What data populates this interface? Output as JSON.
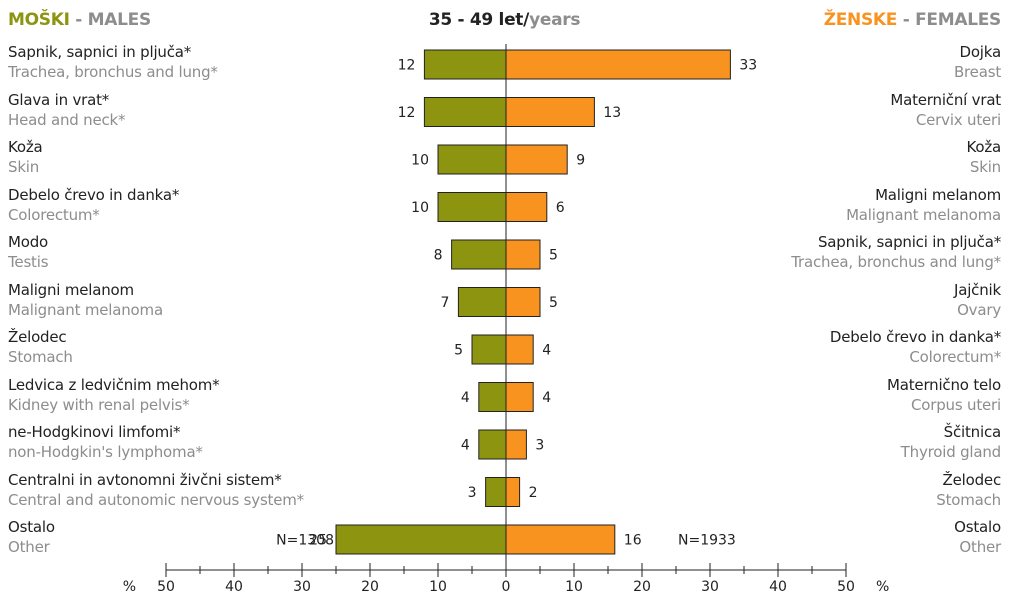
{
  "header": {
    "left_sl": "MOŠKI",
    "left_sep": " - ",
    "left_en": "MALES",
    "center_age": "35 - 49 let",
    "center_slash": "/",
    "center_en": "years",
    "right_sl": "ŽENSKE",
    "right_sep": " - ",
    "right_en": "FEMALES"
  },
  "colors": {
    "male": "#8c9410",
    "female": "#f7931e",
    "text_gray": "#8d8d8d",
    "text_dark": "#222222"
  },
  "chart_data": {
    "type": "bar",
    "orientation": "horizontal",
    "layout": "back-to-back",
    "xlim": [
      -50,
      50
    ],
    "ticks": [
      50,
      40,
      30,
      20,
      10,
      0,
      10,
      20,
      30,
      40,
      50
    ],
    "unit": "%",
    "males": {
      "n_label": "N=1308",
      "rows": [
        {
          "sl": "Sapnik, sapnici in pljuča*",
          "en": "Trachea, bronchus and lung*",
          "value": 12
        },
        {
          "sl": "Glava in vrat*",
          "en": "Head and neck*",
          "value": 12
        },
        {
          "sl": "Koža",
          "en": "Skin",
          "value": 10
        },
        {
          "sl": "Debelo črevo in danka*",
          "en": "Colorectum*",
          "value": 10
        },
        {
          "sl": "Modo",
          "en": "Testis",
          "value": 8
        },
        {
          "sl": "Maligni melanom",
          "en": "Malignant melanoma",
          "value": 7
        },
        {
          "sl": "Želodec",
          "en": "Stomach",
          "value": 5
        },
        {
          "sl": "Ledvica z ledvičnim mehom*",
          "en": "Kidney with renal pelvis*",
          "value": 4
        },
        {
          "sl": "ne-Hodgkinovi limfomi*",
          "en": "non-Hodgkin's lymphoma*",
          "value": 4
        },
        {
          "sl": "Centralni in avtonomni živčni sistem*",
          "en": "Central and autonomic nervous system*",
          "value": 3
        },
        {
          "sl": "Ostalo",
          "en": "Other",
          "value": 25
        }
      ]
    },
    "females": {
      "n_label": "N=1933",
      "rows": [
        {
          "sl": "Dojka",
          "en": "Breast",
          "value": 33
        },
        {
          "sl": "Materniční vrat",
          "en": "Cervix uteri",
          "value": 13
        },
        {
          "sl": "Koža",
          "en": "Skin",
          "value": 9
        },
        {
          "sl": "Maligni melanom",
          "en": "Malignant melanoma",
          "value": 6
        },
        {
          "sl": "Sapnik, sapnici in pljuča*",
          "en": "Trachea, bronchus and lung*",
          "value": 5
        },
        {
          "sl": "Jajčnik",
          "en": "Ovary",
          "value": 5
        },
        {
          "sl": "Debelo črevo in danka*",
          "en": "Colorectum*",
          "value": 4
        },
        {
          "sl": "Maternično telo",
          "en": "Corpus uteri",
          "value": 4
        },
        {
          "sl": "Ščitnica",
          "en": "Thyroid gland",
          "value": 3
        },
        {
          "sl": "Želodec",
          "en": "Stomach",
          "value": 2
        },
        {
          "sl": "Ostalo",
          "en": "Other",
          "value": 16
        }
      ]
    }
  }
}
